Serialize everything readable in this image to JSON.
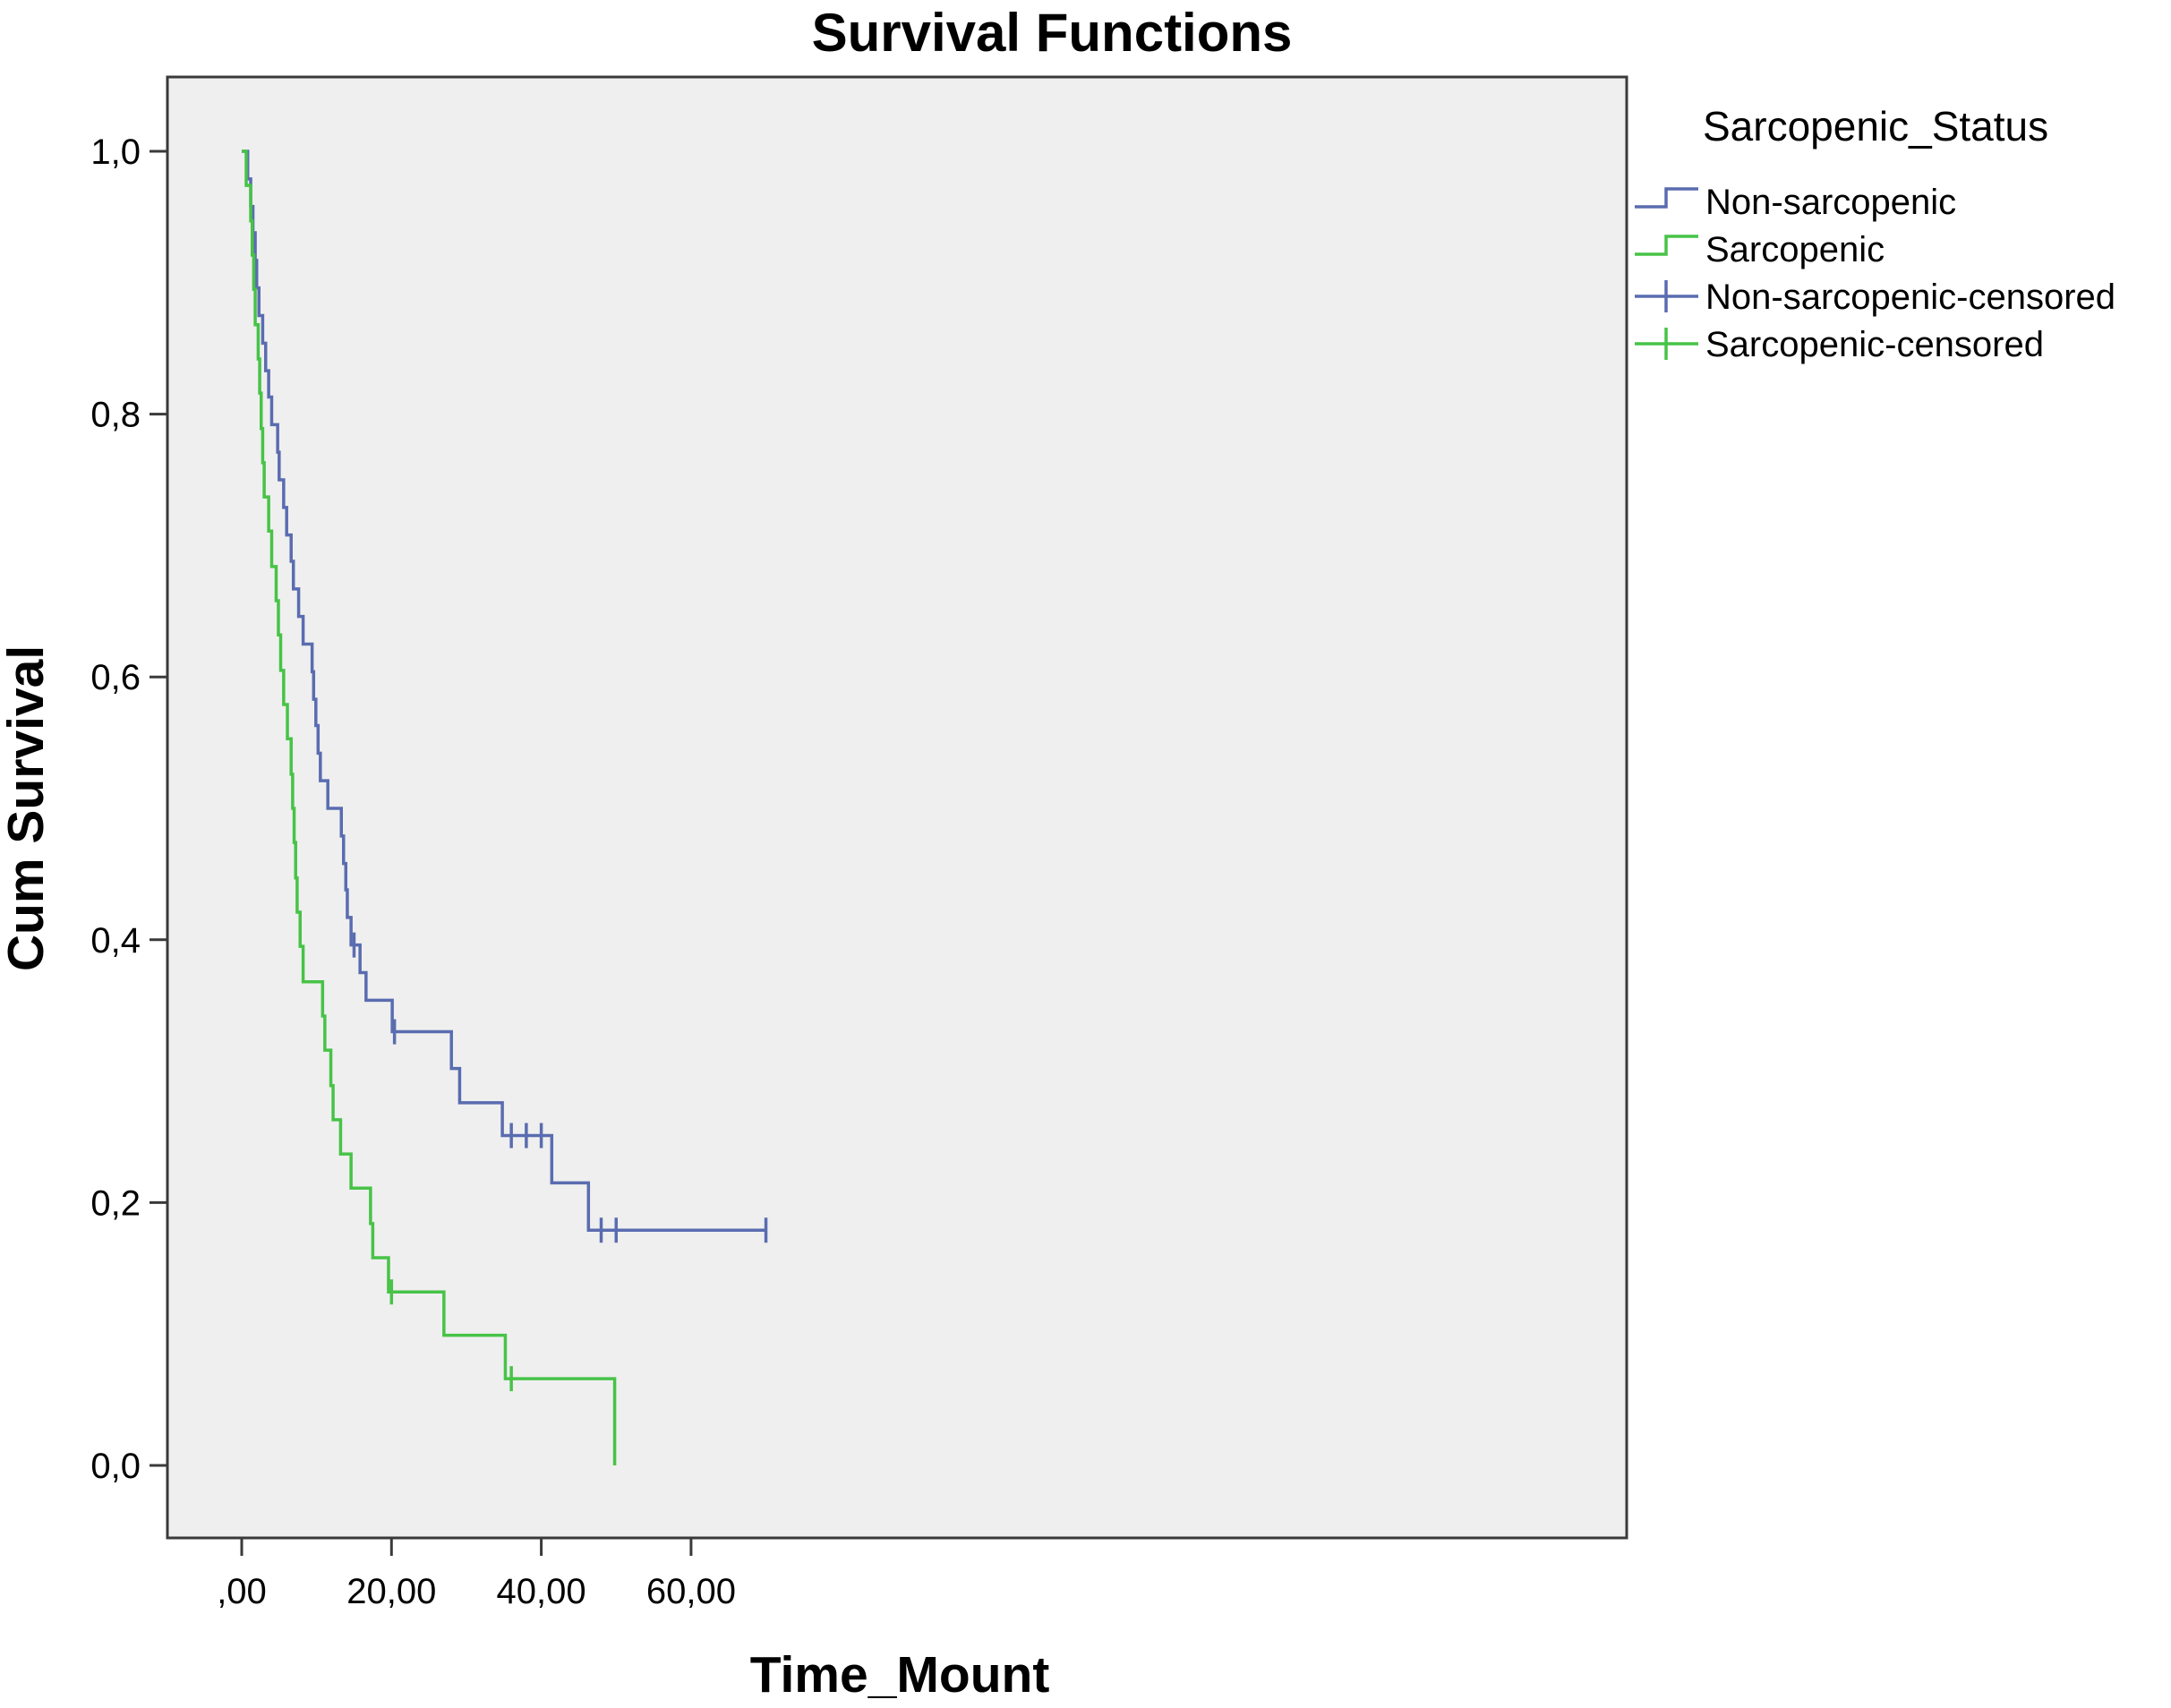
{
  "chart_data": {
    "type": "line",
    "subtype": "kaplan-meier-step",
    "title": "Survival Functions",
    "xlabel": "Time_Mount",
    "ylabel": "Cum Survival",
    "xlim": [
      -4,
      74
    ],
    "ylim": [
      -0.11,
      1.06
    ],
    "x_ticks": [
      0,
      20,
      40,
      60
    ],
    "x_tick_labels": [
      ",00",
      "20,00",
      "40,00",
      "60,00"
    ],
    "y_ticks": [
      0,
      0.2,
      0.4,
      0.6,
      0.8,
      1.0
    ],
    "y_tick_labels": [
      "0,0",
      "0,2",
      "0,4",
      "0,6",
      "0,8",
      "1,0"
    ],
    "grid": false,
    "plot_background": "#efefef",
    "legend": {
      "title": "Sarcopenic_Status",
      "placement": "right",
      "entries": [
        {
          "label": "Non-sarcopenic",
          "color": "#5a6cb0",
          "kind": "step"
        },
        {
          "label": "Sarcopenic",
          "color": "#47c347",
          "kind": "step"
        },
        {
          "label": "Non-sarcopenic-censored",
          "color": "#5a6cb0",
          "kind": "cross"
        },
        {
          "label": "Sarcopenic-censored",
          "color": "#47c347",
          "kind": "cross"
        }
      ]
    },
    "series": [
      {
        "name": "Non-sarcopenic",
        "color": "#5a6cb0",
        "steps": [
          [
            0,
            1.0
          ],
          [
            0.8,
            0.979
          ],
          [
            1.2,
            0.958
          ],
          [
            1.5,
            0.938
          ],
          [
            1.8,
            0.917
          ],
          [
            2.0,
            0.896
          ],
          [
            2.3,
            0.875
          ],
          [
            2.8,
            0.854
          ],
          [
            3.2,
            0.833
          ],
          [
            3.6,
            0.813
          ],
          [
            4.0,
            0.792
          ],
          [
            4.8,
            0.771
          ],
          [
            5.0,
            0.75
          ],
          [
            5.6,
            0.729
          ],
          [
            6.0,
            0.708
          ],
          [
            6.6,
            0.688
          ],
          [
            6.9,
            0.667
          ],
          [
            7.6,
            0.646
          ],
          [
            8.2,
            0.625
          ],
          [
            9.4,
            0.604
          ],
          [
            9.6,
            0.583
          ],
          [
            9.9,
            0.563
          ],
          [
            10.2,
            0.542
          ],
          [
            10.5,
            0.521
          ],
          [
            11.5,
            0.5
          ],
          [
            13.3,
            0.479
          ],
          [
            13.6,
            0.458
          ],
          [
            13.9,
            0.438
          ],
          [
            14.1,
            0.417
          ],
          [
            14.6,
            0.396
          ],
          [
            15.8,
            0.375
          ],
          [
            16.6,
            0.354
          ],
          [
            20.1,
            0.33
          ],
          [
            28.0,
            0.302
          ],
          [
            29.1,
            0.276
          ],
          [
            34.8,
            0.251
          ],
          [
            41.4,
            0.215
          ],
          [
            46.3,
            0.179
          ],
          [
            70.0,
            0.179
          ]
        ],
        "censored": [
          15.0,
          20.4,
          36.0,
          38.0,
          40.0,
          48.0,
          50.0,
          70.0
        ]
      },
      {
        "name": "Sarcopenic",
        "color": "#47c347",
        "steps": [
          [
            0,
            1.0
          ],
          [
            0.6,
            0.974
          ],
          [
            1.2,
            0.947
          ],
          [
            1.4,
            0.921
          ],
          [
            1.6,
            0.895
          ],
          [
            1.8,
            0.868
          ],
          [
            2.2,
            0.842
          ],
          [
            2.4,
            0.816
          ],
          [
            2.6,
            0.789
          ],
          [
            2.8,
            0.763
          ],
          [
            3.0,
            0.737
          ],
          [
            3.6,
            0.711
          ],
          [
            4.0,
            0.684
          ],
          [
            4.6,
            0.658
          ],
          [
            4.9,
            0.632
          ],
          [
            5.2,
            0.605
          ],
          [
            5.6,
            0.579
          ],
          [
            6.1,
            0.553
          ],
          [
            6.6,
            0.526
          ],
          [
            6.8,
            0.5
          ],
          [
            7.0,
            0.474
          ],
          [
            7.2,
            0.447
          ],
          [
            7.4,
            0.421
          ],
          [
            7.8,
            0.395
          ],
          [
            8.2,
            0.368
          ],
          [
            10.8,
            0.342
          ],
          [
            11.1,
            0.316
          ],
          [
            11.9,
            0.289
          ],
          [
            12.2,
            0.263
          ],
          [
            13.2,
            0.237
          ],
          [
            14.6,
            0.211
          ],
          [
            17.2,
            0.184
          ],
          [
            17.5,
            0.158
          ],
          [
            19.6,
            0.132
          ],
          [
            27.0,
            0.099
          ],
          [
            35.2,
            0.066
          ],
          [
            49.8,
            0.0
          ]
        ],
        "censored": [
          20.0,
          36.0
        ]
      }
    ]
  }
}
